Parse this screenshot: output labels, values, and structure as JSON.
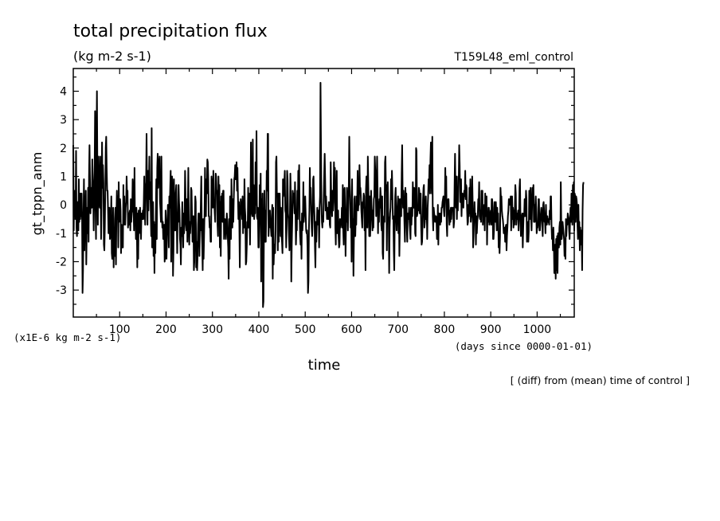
{
  "chart_data": {
    "type": "line",
    "title": "total precipitation flux",
    "subtitle": "(kg m-2 s-1)",
    "run_label": "T159L48_eml_control",
    "ylabel": "gt_tppn_anm",
    "y_unit_note": "(x1E-6 kg m-2 s-1)",
    "xlabel": "time",
    "x_unit_note": "(days since 0000-01-01)",
    "footnote": "[ (diff) from (mean) time of control ]",
    "xlim": [
      0,
      1080
    ],
    "ylim": [
      -3.95,
      4.8
    ],
    "x_ticks": [
      100,
      200,
      300,
      400,
      500,
      600,
      700,
      800,
      900,
      1000
    ],
    "y_ticks": [
      -3,
      -2,
      -1,
      0,
      1,
      2,
      3,
      4
    ],
    "x_step": 1,
    "series": [
      {
        "values": [
          2.1,
          -0.9,
          0.5,
          0.3,
          -0.2,
          -0.5,
          1.9,
          -0.8,
          -1.1,
          0.1,
          -0.4,
          -0.9,
          0.9,
          -0.6,
          0.4,
          -0.5,
          0.4,
          -0.4,
          0.4,
          -0.5,
          -3.1,
          -2.3,
          -0.5,
          0.9,
          -1.6,
          -0.2,
          -0.2,
          0.5,
          -2.1,
          -0.9,
          -0.1,
          -1,
          0.6,
          -1.3,
          1,
          2.1,
          0.9,
          -0.3,
          0.4,
          0.6,
          -0.1,
          1.6,
          0.9,
          0.5,
          -0.9,
          0.4,
          1.2,
          3.3,
          -0.1,
          -1.2,
          2,
          4,
          1.2,
          -0.7,
          1.7,
          0.9,
          0.1,
          -0.1,
          1.7,
          0.5,
          -1.2,
          0.2,
          2.2,
          0.6,
          1.4,
          0.8,
          -1.4,
          -1.6,
          -0.8,
          0.5,
          2,
          2.4,
          1.3,
          0.5,
          0.5,
          -0.2,
          -1,
          -0.6,
          -0.1,
          -1.2,
          -1.1,
          -0.8,
          0.3,
          -1.7,
          -1.9,
          -1.4,
          -0.1,
          -2.2,
          -0.9,
          -1.8,
          -0.5,
          -0.1,
          -2.1,
          -0.4,
          0.5,
          -0.5,
          0.3,
          -1.5,
          0.8,
          -0.6,
          -0.4,
          0.2,
          -0.2,
          -1.7,
          -0.7,
          -0.9,
          -1.5,
          -1.5,
          0.7,
          -0.7,
          0.3,
          -0.6,
          -0.7,
          -0.1,
          0.1,
          1,
          0.3,
          0.5,
          -0.8,
          -0.5,
          -0.7,
          -0.3,
          -0.2,
          -0.9,
          0.2,
          -0.6,
          -0.3,
          -0.2,
          0.9,
          0.6,
          -0.2,
          -0.9,
          1.3,
          -0.7,
          -0.2,
          -1.2,
          -0.1,
          -0.6,
          -2.2,
          -0.3,
          -1.9,
          -0.2,
          -1,
          -0.8,
          -0.1,
          -0.8,
          -1.2,
          -0.3,
          -0.4,
          -0.5,
          -0.2,
          -0.5,
          0.1,
          1,
          -0.2,
          -0.7,
          0.6,
          0.8,
          2.5,
          0.4,
          -0.7,
          1.2,
          -0.2,
          0.6,
          1.7,
          0.2,
          0.8,
          -0.2,
          -1.1,
          2.7,
          -1.5,
          -0.2,
          0.1,
          -1.8,
          -0.6,
          -2.4,
          -0.7,
          -1.7,
          -0.3,
          0.9,
          -1.2,
          1.3,
          1.8,
          0.6,
          1.6,
          1.2,
          1.7,
          0.1,
          -0.2,
          -0.6,
          1.7,
          -0.4,
          -0.8,
          -0.6,
          -1.2,
          -1.2,
          -0.7,
          -2,
          -1.8,
          -0.2,
          -0.6,
          -1.9,
          -1.1,
          -0.7,
          0,
          -0.5,
          -1.5,
          0.3,
          -0.1,
          0.6,
          1.2,
          -2,
          -0.9,
          1,
          0.5,
          -2.5,
          -1.6,
          0.9,
          0.1,
          -0.9,
          -0.9,
          0.4,
          0.7,
          -0.5,
          -1.7,
          -0.3,
          -0.6,
          0.7,
          0.1,
          -0.2,
          -1.2,
          -1.4,
          -2.1,
          -0.8,
          -1.1,
          0.1,
          -0.7,
          -1.5,
          -0.3,
          -1,
          -0.4,
          1.2,
          0.3,
          -0.7,
          -0.9,
          0.2,
          -1.3,
          -0.2,
          1.3,
          -0.6,
          -1.4,
          -0.6,
          -1,
          -0.6,
          0.6,
          0.5,
          -0.4,
          -1.3,
          -0.8,
          -0.4,
          -2.3,
          -2,
          -0.7,
          0.3,
          0.1,
          -2.2,
          -1.3,
          -2.3,
          -1.8,
          -0.7,
          -0.3,
          -0.3,
          -1.8,
          -0.6,
          -0.9,
          0.1,
          1,
          -0.9,
          -1.4,
          -2.3,
          -0.5,
          -1.9,
          -1.1,
          -0.3,
          1.3,
          -0.2,
          -0.4,
          0.9,
          0.4,
          1.6,
          1.5,
          0.9,
          -0.4,
          -0.4,
          -0.8,
          -0.7,
          -1.3,
          -1.3,
          1,
          0.1,
          0.9,
          -0.1,
          1.2,
          0.2,
          0.1,
          -0.3,
          -0.6,
          1.1,
          1,
          0.4,
          0.5,
          -0.7,
          -1.1,
          1,
          0.1,
          0.7,
          -1.5,
          0.1,
          -1.8,
          0.3,
          -0.4,
          0.4,
          -0.6,
          0.5,
          0.5,
          -1.2,
          -0.5,
          -0.5,
          -0.7,
          -1.2,
          -0.7,
          -0.3,
          -0.6,
          -1.1,
          -1.5,
          -2.6,
          -0.5,
          -1.9,
          0.3,
          -0.5,
          -1.2,
          0.9,
          -0.2,
          -0.8,
          0.2,
          -0.6,
          0.2,
          0.9,
          1,
          1.4,
          0.9,
          0.9,
          1.5,
          0.5,
          1.3,
          0.3,
          -0.5,
          0.1,
          -0.7,
          -2.2,
          -0.4,
          0.2,
          -0.1,
          -0.1,
          -0.5,
          0.3,
          -1,
          0,
          -0.8,
          0.9,
          -0.1,
          -0.4,
          -2.1,
          -2,
          -1.5,
          -0.6,
          -0.8,
          0.6,
          -0.8,
          0.4,
          -0.2,
          -1.4,
          0.2,
          2.2,
          -0.1,
          -0.3,
          -0.4,
          2.3,
          -0.4,
          0.7,
          -0.5,
          -0.1,
          -0.3,
          1.5,
          0,
          2.6,
          -0.4,
          -0.5,
          -0.1,
          -1.5,
          -1.5,
          -0.7,
          0.7,
          0.3,
          1.1,
          -2.7,
          0.2,
          -0.9,
          0.4,
          -3.6,
          -3.4,
          -1,
          0.5,
          -1.3,
          -0.2,
          -1.3,
          -0.3,
          1.2,
          0.5,
          2.5,
          2.5,
          -1.1,
          -0.6,
          -0.7,
          -0.2,
          -0.8,
          -0.8,
          -1.1,
          -0.4,
          0,
          -2.6,
          -0.1,
          -2.1,
          -1.5,
          -1.4,
          -1.7,
          -0.9,
          1.5,
          1.7,
          0.3,
          0.3,
          -1.6,
          0.4,
          -1.3,
          0.2,
          0.4,
          -0.4,
          -1.1,
          -0.1,
          -1.1,
          -1.3,
          -1.7,
          0.9,
          0.3,
          0.7,
          0.8,
          1.2,
          -0.2,
          -0.3,
          -1.5,
          -0.7,
          1.2,
          0.9,
          -0.3,
          -0.5,
          -1.1,
          -1.6,
          -0.6,
          1.1,
          0.3,
          -2.7,
          -1.4,
          -0.6,
          0.5,
          0.3,
          0.4,
          0.1,
          -0.3,
          0.8,
          -0.1,
          -1.4,
          -0.8,
          -0.9,
          0.5,
          -0.5,
          1.2,
          0.7,
          1.4,
          -0.4,
          -1.1,
          -1.4,
          -0.6,
          -1.9,
          -0.3,
          -0.9,
          -0.6,
          0.8,
          -0.6,
          -0.3,
          -0.1,
          0.3,
          -0.3,
          -0.9,
          -1,
          -0.9,
          -1.5,
          -3.1,
          -2.7,
          -0.9,
          -0.2,
          1.3,
          0.3,
          0.6,
          -0.2,
          -0.8,
          -1.1,
          -0.6,
          0.9,
          1,
          0.1,
          -0.4,
          -1.5,
          -2.2,
          -0.6,
          -1.3,
          -0.7,
          -0.1,
          -0.4,
          -0.7,
          -0.2,
          -1.5,
          -0.1,
          0.3,
          4.3,
          2.1,
          0.1,
          -0.6,
          -0.8,
          -0.4,
          -0.6,
          0.3,
          1.1,
          1.8,
          0.9,
          -0.2,
          0.3,
          -0.1,
          -0.5,
          -0.4,
          -0.1,
          -0.5,
          0.1,
          -0.1,
          -0.7,
          -0.8,
          1.5,
          0.4,
          0,
          -0.4,
          0.5,
          -0.2,
          0.1,
          1.5,
          0.4,
          1.3,
          -0.8,
          -1.4,
          0.2,
          1.2,
          -1,
          -0.4,
          -0.2,
          -1.1,
          -1.5,
          -1.4,
          -0.5,
          -0.8,
          -0.6,
          -0.7,
          -0.1,
          -0.8,
          0.7,
          -0.9,
          -1.4,
          0.5,
          0.6,
          -0.2,
          -1.8,
          -0.5,
          -0.6,
          0.6,
          0.1,
          -0.9,
          -0.1,
          0.7,
          2.4,
          0.8,
          0.3,
          -0.8,
          -0.1,
          -2,
          0.9,
          -0.6,
          -0.5,
          -2.5,
          -1.2,
          0.2,
          0.3,
          -1.1,
          -0.3,
          -0.7,
          0.3,
          -0.1,
          1.2,
          -0.2,
          0.1,
          0,
          1.4,
          0.6,
          0.6,
          0.3,
          -0.2,
          -0.5,
          -0.8,
          0.1,
          -0.1,
          0.4,
          0.3,
          -0.9,
          -0.1,
          -2.3,
          0.5,
          1,
          -0.5,
          -0.8,
          1.7,
          0.7,
          -0.1,
          -1.1,
          0.3,
          -1.1,
          -0.5,
          0.5,
          0,
          -0.3,
          -0.9,
          -0.2,
          -0.8,
          0.2,
          0.3,
          1.7,
          1.2,
          0.7,
          -0.4,
          0.8,
          1.7,
          0.5,
          -1,
          0.1,
          -0.6,
          0.2,
          -0.1,
          0.6,
          0.3,
          -0.7,
          -0.9,
          0.3,
          -1.7,
          -1.9,
          -0.7,
          -0.4,
          -0.6,
          1.5,
          1.7,
          0.5,
          0.7,
          -1.6,
          0.3,
          0.8,
          -0.4,
          -0.5,
          -2.4,
          -0.8,
          -0.3,
          -0.1,
          0.9,
          0.2,
          1.2,
          0.4,
          -0.5,
          -0.4,
          -1.6,
          -2.3,
          -0.6,
          0.3,
          0.6,
          -0.4,
          -0.9,
          -0.2,
          -0.1,
          0.3,
          -1,
          0.2,
          -1.8,
          -0.8,
          0.2,
          -0.2,
          -0.4,
          1.1,
          2.1,
          0.5,
          -0.1,
          0.5,
          0,
          -0.7,
          -1.3,
          0.6,
          0.1,
          0.4,
          -0.8,
          -1.3,
          -0.3,
          -0.3,
          -0.5,
          -0.1,
          -0.6,
          -0.9,
          -1.2,
          -0.1,
          -0.7,
          -0.1,
          -0.4,
          0.8,
          -0.1,
          -0.1,
          0.6,
          0.5,
          -1,
          -1.1,
          2,
          1.9,
          -0.4,
          -0.3,
          -0.1,
          -0.2,
          0.6,
          0.5,
          -0.3,
          -0.3,
          0.4,
          -0.8,
          -1.4,
          -1.3,
          -0.7,
          0.2,
          0.6,
          0.7,
          -0.8,
          -0.6,
          -0.2,
          0.3,
          -0.5,
          -0.2,
          -1.2,
          -0.1,
          0.3,
          0.9,
          0.7,
          1.4,
          0.4,
          1.6,
          2.2,
          0.9,
          0.4,
          2.4,
          -0.4,
          -0.9,
          -0.1,
          -0.3,
          -0.4,
          -0.6,
          -0.4,
          -0.4,
          -0.5,
          -1.2,
          -1.2,
          0,
          -1.4,
          -0.4,
          -0.3,
          -0.6,
          -0.7,
          -0.3,
          -0.6,
          -0.1,
          -0.1,
          0.1,
          0.2,
          0.3,
          -0.2,
          -0.4,
          0.1,
          1.3,
          0.3,
          1,
          -0.7,
          -1.1,
          0.1,
          0.2,
          0.2,
          -0.3,
          -0.7,
          -0.2,
          -0.6,
          -0.1,
          -0.5,
          -0.1,
          -0.1,
          -0.2,
          -0.1,
          -0.8,
          -0.6,
          0.7,
          1.8,
          0.6,
          -0.1,
          1,
          -0.5,
          0.3,
          -0.2,
          1,
          0.9,
          2.1,
          1.4,
          0.1,
          0.4,
          0.9,
          -0.4,
          0.3,
          0.4,
          0.2,
          -0.1,
          0.3,
          0.5,
          0.3,
          1.2,
          0.2,
          0.7,
          0.6,
          -0.2,
          -0.7,
          -0.6,
          0,
          -0.4,
          0.6,
          -0.3,
          0.9,
          -0.6,
          -0.4,
          -0.1,
          1,
          0.1,
          -1.5,
          -1.1,
          -0.5,
          0.1,
          -0.4,
          -0.3,
          -1.4,
          -0.4,
          -1,
          -0.6,
          -0.4,
          0.2,
          0,
          0.8,
          -0.4,
          -0.5,
          -0.2,
          -0.6,
          0.5,
          -0.3,
          0.5,
          -0.7,
          -0.1,
          -0.3,
          0,
          -0.9,
          0.4,
          -0.4,
          0.2,
          0.3,
          -1.4,
          -0.3,
          -0.6,
          -0.1,
          -0.1,
          -0.7,
          -0.4,
          -0.4,
          -0.2,
          -0.7,
          0.2,
          0.2,
          -0.1,
          -1.2,
          -1.2,
          -0.9,
          0.1,
          -0.3,
          -0.6,
          0.1,
          -0.3,
          -0.9,
          -0.1,
          -0.7,
          -0.3,
          -1.5,
          -1.1,
          -1.7,
          -1.1,
          0.6,
          0.2,
          0.3,
          -0.2,
          -0.4,
          -0.5,
          -0.7,
          -1,
          -1,
          -0.8,
          -1.3,
          -0.8,
          -0.7,
          -1.6,
          -1.1,
          -0.8,
          -0.4,
          -0.2,
          0.2,
          0,
          0.2,
          0,
          0.3,
          -0.9,
          -0.3,
          0.3,
          -0.5,
          -0.1,
          -0.8,
          -0.2,
          -0.7,
          -0.1,
          0.7,
          0.4,
          -0.7,
          -0.4,
          -0.3,
          -0.5,
          -0.2,
          -0.9,
          -0.4,
          0.6,
          0.9,
          -0.4,
          -1.1,
          -0.4,
          -0.4,
          -0.3,
          -1.5,
          -0.8,
          -0.3,
          -0.4,
          0.2,
          -0.4,
          -0.1,
          0.5,
          0.2,
          -1.3,
          -0.6,
          -0.9,
          -1.3,
          -0.9,
          0.5,
          -0.5,
          0.2,
          0.6,
          -0.5,
          -0.9,
          -0.1,
          0.6,
          0.2,
          0.7,
          -0.6,
          0,
          -0.6,
          -0.1,
          0.3,
          -0.1,
          -1,
          -0.8,
          -0.8,
          -0.6,
          0.2,
          0.2,
          -0.9,
          -0.9,
          -0.6,
          -0.3,
          -0.1,
          -0.3,
          -0.7,
          -1.1,
          0,
          0.1,
          -0.2,
          -0.6,
          -0.6,
          -1,
          0,
          -0.6,
          -0.7,
          -0.4,
          -0.6,
          -0.5,
          -0.6,
          -0.7,
          -0.2,
          -0.5,
          0.3,
          0.3,
          -0.7,
          -1.2,
          -0.9,
          -1.6,
          -0.8,
          -1.3,
          -2.4,
          -2.1,
          -1.4,
          -2.6,
          -1.2,
          -2.3,
          -1.1,
          -2.4,
          -1,
          -1.5,
          -1.5,
          -0.8,
          -0.6,
          -1.4,
          0.8,
          -0.6,
          -1.2,
          -0.9,
          -0.6,
          -0.8,
          -1,
          -1.2,
          -1.8,
          -1.3,
          -1.9,
          -0.5,
          -1.1,
          -0.6,
          -0.7,
          -0.3,
          -0.4,
          -0.5,
          -0.9,
          -1.2,
          -0.5,
          -0.1,
          -0.6,
          0.4,
          -0.3,
          -0.7,
          0.7,
          -0.5,
          0.8,
          -0.9,
          0.4,
          0.3,
          -0.6,
          0.3,
          0.2,
          0,
          -0.7,
          -1.2,
          0,
          -1,
          -0.6,
          -1.6,
          -0.8,
          -1.3,
          -1.4,
          -0.9,
          -2.3,
          -0.2,
          0.7,
          0.8
        ]
      }
    ]
  }
}
